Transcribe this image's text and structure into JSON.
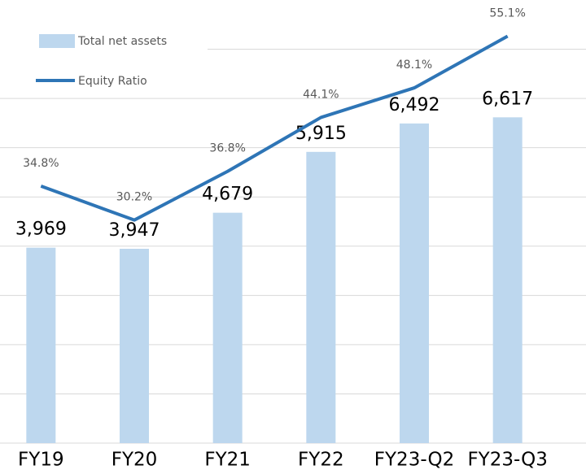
{
  "chart_data": {
    "type": "bar_line",
    "fragment": ")",
    "categories": [
      "FY19",
      "FY20",
      "FY21",
      "FY22",
      "FY23-Q2",
      "FY23-Q3"
    ],
    "series": [
      {
        "name": "Total net assets",
        "color": "#bdd7ee",
        "type": "bar",
        "values": [
          3969,
          3947,
          4679,
          5915,
          6492,
          6617
        ],
        "value_labels": [
          "3,969",
          "3,947",
          "4,679",
          "5,915",
          "6,492",
          "6,617"
        ]
      },
      {
        "name": "Equity Ratio",
        "color": "#2e75b6",
        "type": "line",
        "axis": "y2",
        "values": [
          34.8,
          30.2,
          36.8,
          44.1,
          48.1,
          55.1
        ],
        "value_labels": [
          "34.8%",
          "30.2%",
          "36.8%",
          "44.1%",
          "48.1%",
          "55.1%"
        ]
      }
    ],
    "ylim": [
      0,
      9000
    ],
    "yticks": [
      0,
      1000,
      2000,
      3000,
      4000,
      5000,
      6000,
      7000,
      8000
    ],
    "y2lim": [
      0,
      60
    ],
    "grid": true
  }
}
